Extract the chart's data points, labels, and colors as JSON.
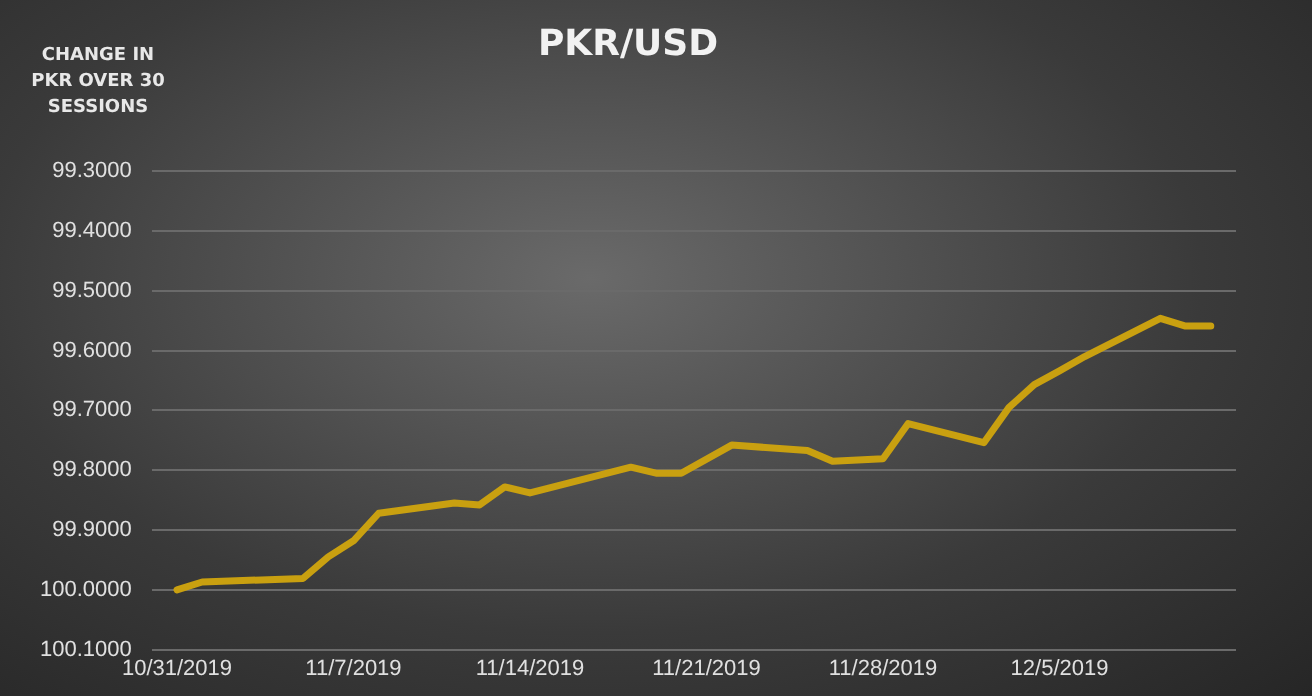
{
  "chart_data": {
    "type": "line",
    "title": "PKR/USD",
    "ylabel": "CHANGE IN PKR OVER 30 SESSIONS",
    "x": [
      "2019-10-31",
      "2019-11-01",
      "2019-11-05",
      "2019-11-06",
      "2019-11-07",
      "2019-11-08",
      "2019-11-11",
      "2019-11-12",
      "2019-11-13",
      "2019-11-14",
      "2019-11-18",
      "2019-11-19",
      "2019-11-20",
      "2019-11-22",
      "2019-11-25",
      "2019-11-26",
      "2019-11-28",
      "2019-11-29",
      "2019-12-02",
      "2019-12-03",
      "2019-12-04",
      "2019-12-05",
      "2019-12-06",
      "2019-12-09",
      "2019-12-10",
      "2019-12-11"
    ],
    "series": [
      {
        "color": "#c9a010",
        "values": [
          100.0,
          99.987,
          99.981,
          99.945,
          99.918,
          99.872,
          99.855,
          99.858,
          99.828,
          99.838,
          99.795,
          99.805,
          99.805,
          99.758,
          99.767,
          99.785,
          99.781,
          99.722,
          99.754,
          99.695,
          99.657,
          99.634,
          99.61,
          99.546,
          99.559,
          99.559
        ]
      }
    ],
    "xlim": [
      "2019-10-30",
      "2019-12-12"
    ],
    "xticks": [
      {
        "value": "2019-10-31",
        "label": "10/31/2019"
      },
      {
        "value": "2019-11-07",
        "label": "11/7/2019"
      },
      {
        "value": "2019-11-14",
        "label": "11/14/2019"
      },
      {
        "value": "2019-11-21",
        "label": "11/21/2019"
      },
      {
        "value": "2019-11-28",
        "label": "11/28/2019"
      },
      {
        "value": "2019-12-05",
        "label": "12/5/2019"
      }
    ],
    "ylim": [
      100.1,
      99.3
    ],
    "yticks": [
      {
        "value": 99.3,
        "label": "99.3000"
      },
      {
        "value": 99.4,
        "label": "99.4000"
      },
      {
        "value": 99.5,
        "label": "99.5000"
      },
      {
        "value": 99.6,
        "label": "99.6000"
      },
      {
        "value": 99.7,
        "label": "99.7000"
      },
      {
        "value": 99.8,
        "label": "99.8000"
      },
      {
        "value": 99.9,
        "label": "99.9000"
      },
      {
        "value": 100.0,
        "label": "100.0000"
      },
      {
        "value": 100.1,
        "label": "100.1000"
      }
    ],
    "grid": "y",
    "legend": false,
    "marker": "none",
    "line_style": "solid"
  }
}
